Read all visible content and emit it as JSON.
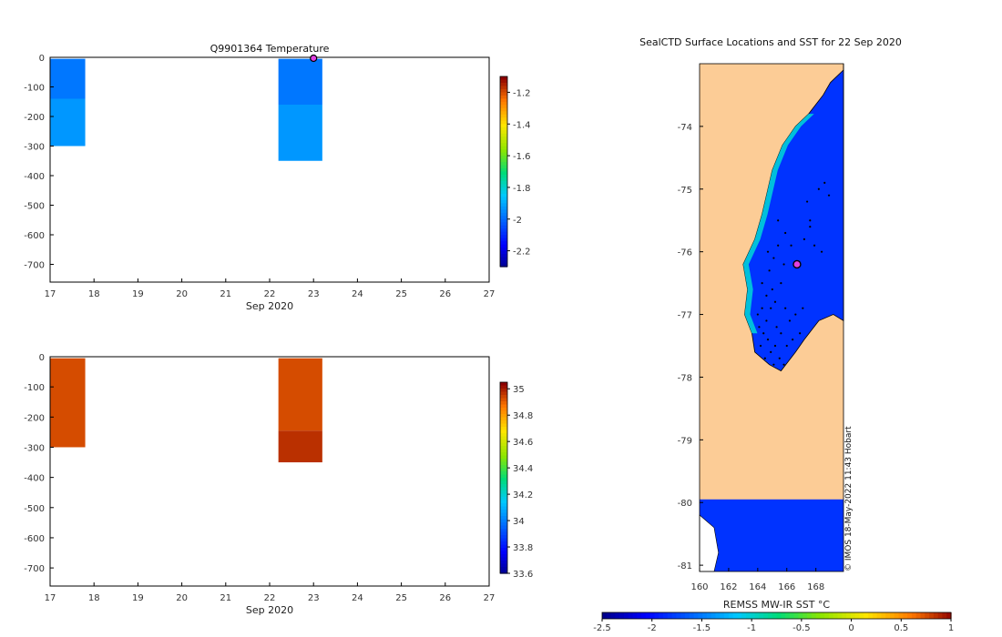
{
  "chart_data": [
    {
      "type": "heatmap",
      "title": "Q9901364  Temperature",
      "xlabel": "Sep 2020",
      "ylabel": "",
      "x_ticks": [
        17,
        18,
        19,
        20,
        21,
        22,
        23,
        24,
        25,
        26,
        27
      ],
      "x_tick_labels": [
        "17",
        "18",
        "19",
        "20",
        "21",
        "22",
        "23",
        "24",
        "25",
        "26",
        "27"
      ],
      "xlim": [
        17,
        27
      ],
      "y_ticks": [
        0,
        -100,
        -200,
        -300,
        -400,
        -500,
        -600,
        -700
      ],
      "ylim": [
        -760,
        0
      ],
      "colorbar": {
        "min": -2.3,
        "max": -1.1,
        "ticks": [
          -1.2,
          -1.4,
          -1.6,
          -1.8,
          -2,
          -2.2
        ],
        "tick_labels": [
          "-1.2",
          "-1.4",
          "-1.6",
          "-1.8",
          "-2",
          "-2.2"
        ]
      },
      "profiles": [
        {
          "x0": 17.0,
          "x1": 17.8,
          "layers": [
            {
              "top": -5,
              "bottom": -140,
              "value": -1.97
            },
            {
              "top": -140,
              "bottom": -300,
              "value": -1.92
            }
          ]
        },
        {
          "x0": 22.2,
          "x1": 23.2,
          "layers": [
            {
              "top": -5,
              "bottom": -160,
              "value": -1.97
            },
            {
              "top": -160,
              "bottom": -350,
              "value": -1.92
            }
          ]
        }
      ],
      "marker": {
        "x": 23.0,
        "y": 0,
        "color": "#e040e0"
      }
    },
    {
      "type": "heatmap",
      "title": "",
      "xlabel": "Sep 2020",
      "ylabel": "",
      "x_ticks": [
        17,
        18,
        19,
        20,
        21,
        22,
        23,
        24,
        25,
        26,
        27
      ],
      "x_tick_labels": [
        "17",
        "18",
        "19",
        "20",
        "21",
        "22",
        "23",
        "24",
        "25",
        "26",
        "27"
      ],
      "xlim": [
        17,
        27
      ],
      "y_ticks": [
        0,
        -100,
        -200,
        -300,
        -400,
        -500,
        -600,
        -700
      ],
      "ylim": [
        -760,
        0
      ],
      "colorbar": {
        "min": 33.6,
        "max": 35.05,
        "ticks": [
          35,
          34.8,
          34.6,
          34.4,
          34.2,
          34,
          33.8,
          33.6
        ],
        "tick_labels": [
          "35",
          "34.8",
          "34.6",
          "34.4",
          "34.2",
          "34",
          "33.8",
          "33.6"
        ]
      },
      "profiles": [
        {
          "x0": 17.0,
          "x1": 17.8,
          "layers": [
            {
              "top": -5,
              "bottom": -300,
              "value": 34.94
            }
          ]
        },
        {
          "x0": 22.2,
          "x1": 23.2,
          "layers": [
            {
              "top": -5,
              "bottom": -245,
              "value": 34.94
            },
            {
              "top": -245,
              "bottom": -350,
              "value": 34.98
            }
          ]
        }
      ]
    },
    {
      "type": "heatmap",
      "title": "SealCTD Surface Locations and SST for 22 Sep 2020",
      "xlabel": "",
      "ylabel": "",
      "x_ticks": [
        160,
        162,
        164,
        166,
        168
      ],
      "x_tick_labels": [
        "160",
        "162",
        "164",
        "166",
        "168"
      ],
      "xlim": [
        160,
        169.9
      ],
      "y_ticks": [
        -74,
        -75,
        -76,
        -77,
        -78,
        -79,
        -80,
        -81
      ],
      "y_tick_labels": [
        "-74",
        "-75",
        "-76",
        "-77",
        "-78",
        "-79",
        "-80",
        "-81"
      ],
      "ylim": [
        -81.1,
        -73.0
      ],
      "sst_dominant": -1.85,
      "sst_edge": -1.05,
      "land_color": "#fccc96",
      "coast_lon": [
        [
          -73.1,
          169.9
        ],
        [
          -73.3,
          169.0
        ],
        [
          -73.5,
          168.5
        ],
        [
          -73.8,
          167.5
        ],
        [
          -74.0,
          166.6
        ],
        [
          -74.3,
          165.7
        ],
        [
          -74.7,
          165.0
        ],
        [
          -75.0,
          164.7
        ],
        [
          -75.4,
          164.3
        ],
        [
          -75.8,
          163.8
        ],
        [
          -76.2,
          163.0
        ],
        [
          -76.6,
          163.3
        ],
        [
          -77.0,
          163.1
        ],
        [
          -77.3,
          163.6
        ],
        [
          -77.6,
          163.8
        ],
        [
          -77.8,
          164.8
        ],
        [
          -77.9,
          165.6
        ],
        [
          -77.6,
          166.6
        ],
        [
          -77.4,
          167.2
        ],
        [
          -77.1,
          168.2
        ],
        [
          -77.0,
          169.2
        ],
        [
          -77.1,
          169.9
        ]
      ],
      "shelf_lat": -79.95,
      "dive_points": [
        [
          168.2,
          -75.0
        ],
        [
          168.6,
          -74.9
        ],
        [
          168.9,
          -75.1
        ],
        [
          167.4,
          -75.2
        ],
        [
          167.6,
          -75.5
        ],
        [
          167.2,
          -75.8
        ],
        [
          167.9,
          -75.9
        ],
        [
          168.4,
          -76.0
        ],
        [
          166.3,
          -75.9
        ],
        [
          165.9,
          -75.7
        ],
        [
          165.4,
          -75.9
        ],
        [
          165.8,
          -76.2
        ],
        [
          165.6,
          -76.5
        ],
        [
          165.2,
          -76.8
        ],
        [
          165.9,
          -76.9
        ],
        [
          166.2,
          -77.1
        ],
        [
          166.6,
          -77.0
        ],
        [
          167.1,
          -76.9
        ],
        [
          166.9,
          -77.3
        ],
        [
          165.0,
          -76.6
        ],
        [
          164.8,
          -76.3
        ],
        [
          164.6,
          -76.7
        ],
        [
          164.3,
          -76.9
        ],
        [
          164.1,
          -77.2
        ],
        [
          164.4,
          -77.3
        ],
        [
          164.7,
          -77.4
        ],
        [
          164.2,
          -77.5
        ],
        [
          164.9,
          -77.6
        ],
        [
          165.2,
          -77.5
        ],
        [
          165.1,
          -77.8
        ],
        [
          165.5,
          -77.7
        ],
        [
          165.8,
          -77.8
        ],
        [
          164.6,
          -77.1
        ],
        [
          164.9,
          -76.9
        ],
        [
          165.3,
          -77.2
        ],
        [
          165.6,
          -77.3
        ],
        [
          166.0,
          -77.5
        ],
        [
          166.4,
          -77.4
        ],
        [
          167.6,
          -75.6
        ],
        [
          165.1,
          -76.1
        ],
        [
          164.7,
          -76.0
        ],
        [
          165.4,
          -75.5
        ],
        [
          164.5,
          -77.7
        ],
        [
          164.0,
          -77.0
        ],
        [
          164.3,
          -76.5
        ]
      ],
      "marker": {
        "lon": 166.7,
        "lat": -76.2,
        "color": "#e040e0"
      },
      "watermark": "© IMOS 18-May-2022 11:43 Hobart",
      "colorbar": {
        "min": -2.5,
        "max": 1.0,
        "ticks": [
          -2.5,
          -2,
          -1.5,
          -1,
          -0.5,
          0,
          0.5,
          1
        ],
        "tick_labels": [
          "-2.5",
          "-2",
          "-1.5",
          "-1",
          "-0.5",
          "0",
          "0.5",
          "1"
        ],
        "label": "REMSS MW-IR SST °C"
      }
    }
  ]
}
